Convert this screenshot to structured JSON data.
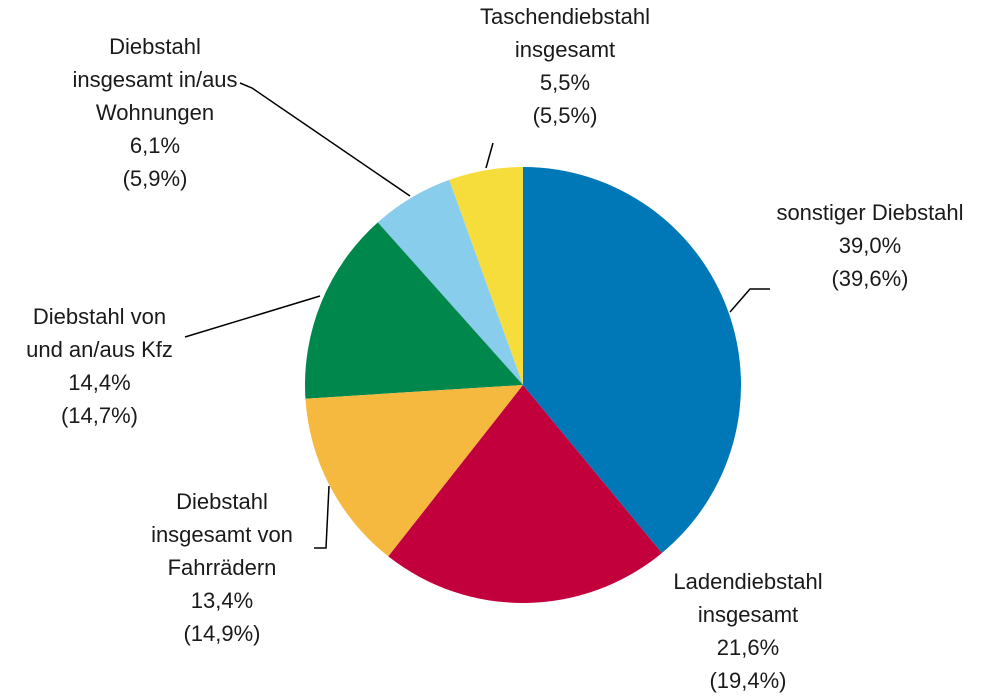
{
  "chart_data": {
    "type": "pie",
    "categories": [
      "sonstiger Diebstahl",
      "Ladendiebstahl insgesamt",
      "Diebstahl insgesamt von Fahrrädern",
      "Diebstahl von und an/aus Kfz",
      "Diebstahl insgesamt in/aus Wohnungen",
      "Taschendiebstahl insgesamt"
    ],
    "values": [
      39.0,
      21.6,
      13.4,
      14.4,
      6.1,
      5.5
    ],
    "value_labels": [
      "39,0%",
      "21,6%",
      "13,4%",
      "14,4%",
      "6,1%",
      "5,5%"
    ],
    "comparison_values": [
      39.6,
      19.4,
      14.9,
      14.7,
      5.9,
      5.5
    ],
    "comparison_labels": [
      "(39,6%)",
      "(19,4%)",
      "(14,9%)",
      "(14,7%)",
      "(5,9%)",
      "(5,5%)"
    ],
    "colors": [
      "#0077b6",
      "#c2003c",
      "#f6b940",
      "#00874b",
      "#88cdec",
      "#f7dd3c"
    ]
  }
}
